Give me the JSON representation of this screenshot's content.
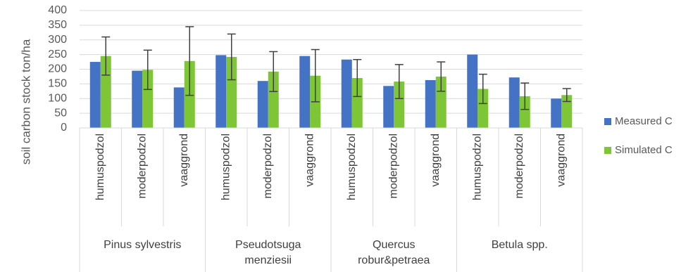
{
  "chart_data": {
    "type": "bar",
    "y_label": "soil carbon stock ton/ha",
    "categories": [
      "humuspodzol",
      "moderpodzol",
      "vaaggrond",
      "humuspodzol",
      "moderpodzol",
      "vaaggrond",
      "humuspodzol",
      "moderpodzol",
      "vaaggrond",
      "humuspodzol",
      "moderpodzol",
      "vaaggrond"
    ],
    "groups": [
      "Pinus sylvestris",
      "Pseudotsuga menziesii",
      "Quercus robur&petraea",
      "Betula spp."
    ],
    "series": [
      {
        "name": "Measured C",
        "color": "#4472c4",
        "values": [
          225,
          195,
          138,
          248,
          160,
          245,
          233,
          143,
          163,
          250,
          172,
          100
        ]
      },
      {
        "name": "Simulated C",
        "color": "#7ec636",
        "values": [
          245,
          198,
          228,
          242,
          192,
          178,
          170,
          158,
          175,
          133,
          108,
          112
        ],
        "errors": [
          65,
          67,
          117,
          78,
          68,
          89,
          63,
          58,
          50,
          50,
          45,
          22
        ]
      }
    ],
    "ylim": [
      0,
      400
    ],
    "yticks": [
      0,
      50,
      100,
      150,
      200,
      250,
      300,
      350,
      400
    ],
    "grid": true,
    "legend": "right"
  }
}
